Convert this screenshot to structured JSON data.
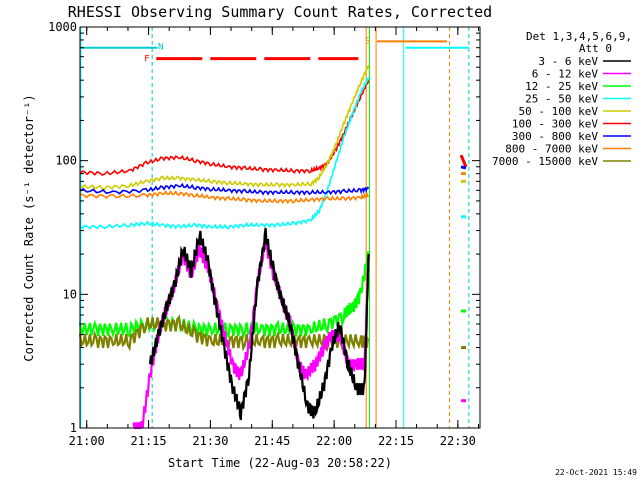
{
  "chart_data": {
    "type": "line",
    "title": "RHESSI Observing Summary Count Rates, Corrected",
    "ylabel": "Corrected Count Rate (s⁻¹ detector⁻¹)",
    "xlabel": "Start Time (22-Aug-03 20:58:22)",
    "footer": "22-Oct-2021 15:49",
    "y_scale": "log",
    "ylim": [
      1,
      1000
    ],
    "xlim_minutes": [
      0,
      36.5
    ],
    "x_ticks": [
      {
        "label": "21:00",
        "t": 1.63
      },
      {
        "label": "21:15",
        "t": 16.63
      },
      {
        "label": "21:30",
        "t": 31.63
      },
      {
        "label": "21:45",
        "t": 46.63
      },
      {
        "label": "22:00",
        "t": 61.63
      },
      {
        "label": "22:15",
        "t": 76.63
      },
      {
        "label": "22:30",
        "t": 91.63
      }
    ],
    "y_ticks": [
      {
        "label": "1",
        "v": 1
      },
      {
        "label": "10",
        "v": 10
      },
      {
        "label": "100",
        "v": 100
      },
      {
        "label": "1000",
        "v": 1000
      }
    ],
    "legend": {
      "header": [
        "Det 1,3,4,5,6,9,",
        "Att 0"
      ],
      "placement": "right"
    },
    "series": [
      {
        "name": "3 - 6 keV",
        "color": "#000000",
        "x": [
          17,
          19,
          21,
          23,
          25,
          27,
          29,
          31,
          33,
          35,
          37,
          39,
          41,
          43,
          45,
          47,
          49,
          51,
          53,
          55,
          57,
          59,
          61,
          63,
          65,
          67,
          69,
          70
        ],
        "values": [
          3,
          5,
          8,
          12,
          22,
          15,
          28,
          18,
          8,
          4,
          2,
          1.3,
          2.5,
          12,
          28,
          15,
          9,
          6,
          3,
          1.5,
          1.3,
          2,
          4,
          6,
          3,
          2,
          2,
          20
        ]
      },
      {
        "name": "6 - 12 keV",
        "color": "#ff00ff",
        "x": [
          13,
          15,
          17,
          19,
          21,
          23,
          25,
          27,
          29,
          31,
          33,
          35,
          37,
          39,
          41,
          43,
          45,
          47,
          49,
          51,
          53,
          55,
          57,
          59,
          61,
          63,
          65,
          67,
          69,
          70
        ],
        "values": [
          1,
          1,
          2.5,
          5,
          8,
          12,
          20,
          14,
          22,
          16,
          9,
          5,
          3,
          2.5,
          4,
          12,
          25,
          14,
          9,
          6,
          3,
          2.5,
          3,
          4,
          5,
          5,
          3,
          3,
          3,
          20
        ]
      },
      {
        "name": "12 - 25 keV",
        "color": "#00ff00",
        "x": [
          0,
          4,
          8,
          12,
          16,
          20,
          24,
          28,
          32,
          36,
          40,
          44,
          48,
          52,
          56,
          60,
          64,
          66,
          68,
          70
        ],
        "values": [
          5.5,
          5.5,
          5.5,
          5.5,
          6,
          6,
          6,
          5.5,
          5.5,
          5.5,
          5.5,
          5.5,
          5.5,
          5.5,
          5.5,
          6,
          7,
          8,
          10,
          20
        ]
      },
      {
        "name": "25 - 50 keV",
        "color": "#00ffff",
        "x": [
          0,
          6,
          12,
          16,
          20,
          24,
          28,
          32,
          36,
          40,
          44,
          48,
          52,
          56,
          58,
          60,
          62,
          64,
          66,
          68,
          70
        ],
        "values": [
          32,
          32,
          33,
          34,
          33,
          32,
          33,
          32,
          32,
          33,
          33,
          33,
          34,
          36,
          42,
          60,
          95,
          150,
          220,
          320,
          420
        ]
      },
      {
        "name": "50 - 100 keV",
        "color": "#cccc00",
        "x": [
          0,
          6,
          12,
          16,
          20,
          24,
          28,
          32,
          36,
          40,
          44,
          48,
          52,
          56,
          58,
          60,
          62,
          64,
          66,
          68,
          70
        ],
        "values": [
          64,
          63,
          65,
          70,
          74,
          74,
          72,
          70,
          68,
          67,
          66,
          66,
          66,
          67,
          75,
          95,
          130,
          190,
          270,
          380,
          520
        ]
      },
      {
        "name": "100 - 300 keV",
        "color": "#ff0000",
        "x": [
          0,
          6,
          12,
          16,
          20,
          24,
          28,
          32,
          36,
          40,
          44,
          48,
          52,
          56,
          58,
          60,
          62,
          64,
          66,
          68,
          70
        ],
        "values": [
          82,
          80,
          84,
          96,
          104,
          106,
          100,
          94,
          90,
          88,
          86,
          85,
          84,
          84,
          88,
          95,
          120,
          160,
          220,
          300,
          400
        ]
      },
      {
        "name": "300 - 800 keV",
        "color": "#0000ff",
        "x": [
          0,
          8,
          16,
          20,
          24,
          28,
          32,
          36,
          40,
          44,
          48,
          52,
          56,
          60,
          64,
          68,
          70
        ],
        "values": [
          60,
          58,
          60,
          63,
          65,
          63,
          61,
          60,
          59,
          58,
          58,
          58,
          58,
          58,
          59,
          60,
          62
        ]
      },
      {
        "name": "800 - 7000 keV",
        "color": "#ff8000",
        "x": [
          0,
          8,
          16,
          20,
          24,
          28,
          32,
          36,
          40,
          44,
          48,
          52,
          56,
          60,
          64,
          68,
          70
        ],
        "values": [
          55,
          54,
          55,
          57,
          57,
          55,
          53,
          52,
          51,
          50,
          50,
          50,
          51,
          52,
          52,
          53,
          55
        ]
      },
      {
        "name": "7000 - 15000 keV",
        "color": "#808000",
        "x": [
          0,
          4,
          8,
          12,
          16,
          20,
          24,
          28,
          32,
          36,
          40,
          44,
          48,
          52,
          56,
          60,
          64,
          68,
          70
        ],
        "values": [
          4.5,
          4.5,
          4.5,
          4.5,
          6,
          6,
          6,
          5,
          4.5,
          4.5,
          4.5,
          4.5,
          4.5,
          4.5,
          4.5,
          4.5,
          4.5,
          4.5,
          4.5
        ]
      }
    ],
    "tail_series_values": [
      {
        "name": "25 - 50 keV",
        "x": [
          92.4,
          93.6
        ],
        "values": [
          38,
          38
        ]
      },
      {
        "name": "50 - 100 keV",
        "x": [
          92.4,
          93.6
        ],
        "values": [
          70,
          70
        ]
      },
      {
        "name": "100 - 300 keV",
        "x": [
          92.4,
          93.6
        ],
        "values": [
          110,
          90
        ]
      },
      {
        "name": "300 - 800 keV",
        "x": [
          92.4,
          93.6
        ],
        "values": [
          90,
          88
        ]
      },
      {
        "name": "800 - 7000 keV",
        "x": [
          92.4,
          93.6
        ],
        "values": [
          80,
          80
        ]
      },
      {
        "name": "12 - 25 keV",
        "x": [
          92.4,
          93.6
        ],
        "values": [
          7.5,
          7.5
        ]
      },
      {
        "name": "7000 - 15000 keV",
        "x": [
          92.4,
          93.6
        ],
        "values": [
          4,
          4
        ]
      },
      {
        "name": "6 - 12 keV",
        "x": [
          92.4,
          93.6
        ],
        "values": [
          1.6,
          1.6
        ]
      }
    ],
    "annotations": [
      {
        "label": "N",
        "color": "#00cccc",
        "value": 700,
        "from": 0,
        "to": 18.8
      },
      {
        "label": "F",
        "color": "#ff0000",
        "value": 580,
        "from": 18.5,
        "to": 67.5
      },
      {
        "label": "S",
        "color": "#ff8000",
        "value": 780,
        "from": 72,
        "to": 89
      }
    ]
  }
}
